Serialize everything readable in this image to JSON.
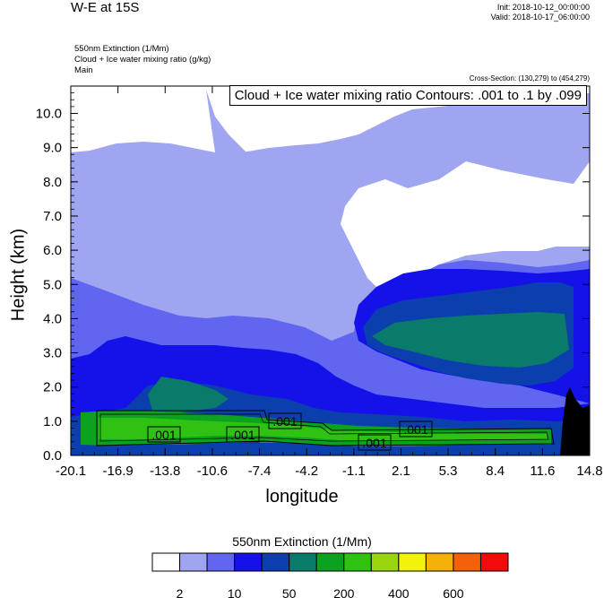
{
  "header": {
    "title": "W-E at 15S",
    "init": "Init: 2018-10-12_00:00:00",
    "valid": "Valid: 2018-10-17_06:00:00",
    "field1": "550nm Extinction   (1/Mm)",
    "field2": "Cloud + Ice water mixing ratio   (g/kg)",
    "field3": "Main",
    "cross_section": "Cross-Section: (130,279) to (454,279)",
    "contour_label": "Cloud + Ice water mixing ratio Contours: .001 to .1 by .099"
  },
  "chart_data": {
    "type": "heatmap",
    "xlabel": "longitude",
    "ylabel": "Height (km)",
    "x_ticks": [
      "-20.1",
      "-16.9",
      "-13.8",
      "-10.6",
      "-7.4",
      "-4.2",
      "-1.1",
      "2.1",
      "5.3",
      "8.4",
      "11.6",
      "14.8"
    ],
    "y_ticks": [
      "0.0",
      "1.0",
      "2.0",
      "3.0",
      "4.0",
      "5.0",
      "6.0",
      "7.0",
      "8.0",
      "9.0",
      "10.0"
    ],
    "xlim": [
      -20.1,
      14.8
    ],
    "ylim": [
      0,
      10.8
    ],
    "contour_labels": [
      ".001",
      ".001",
      ".001",
      ".001",
      ".001"
    ],
    "colorbar": {
      "title": "550nm Extinction  (1/Mm)",
      "levels": [
        "2",
        "10",
        "50",
        "200",
        "400",
        "600"
      ],
      "colors": [
        "#ffffff",
        "#a0a5f2",
        "#6166f0",
        "#1512e9",
        "#0b3fae",
        "#0a7b6a",
        "#0da120",
        "#2fc212",
        "#99d60e",
        "#f2f20a",
        "#f5b00a",
        "#f5600a",
        "#f50a0a"
      ]
    }
  }
}
